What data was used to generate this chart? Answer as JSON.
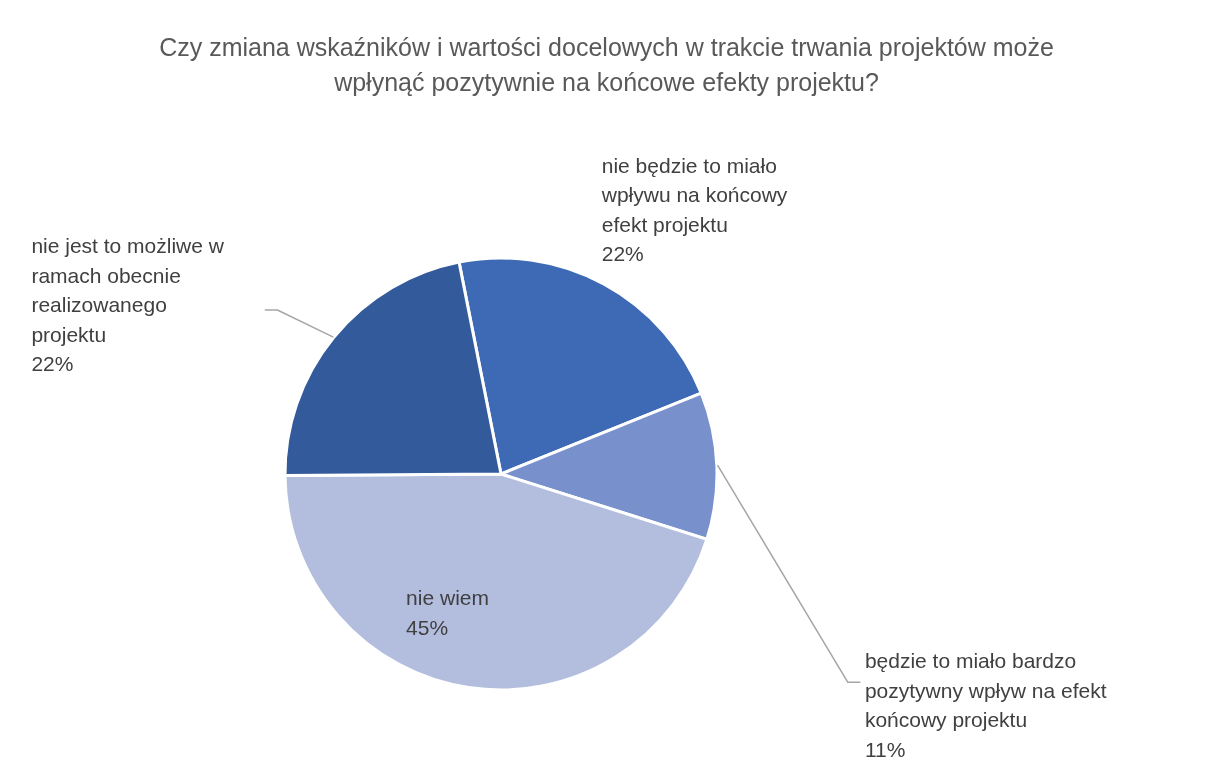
{
  "chart_data": {
    "type": "pie",
    "title": "Czy zmiana wskaźników i wartości docelowych w trakcie trwania projektów może wpłynąć pozytywnie na końcowe efekty projektu?",
    "categories": [
      "nie będzie to miało wpływu na końcowy efekt projektu",
      "będzie to miało bardzo pozytywny wpływ na efekt końcowy projektu",
      "nie wiem",
      "nie jest to możliwe w ramach obecnie realizowanego projektu"
    ],
    "values": [
      22,
      11,
      45,
      22
    ],
    "value_labels": [
      "22%",
      "11%",
      "45%",
      "22%"
    ],
    "colors": [
      "#3e6ab5",
      "#7891cd",
      "#b3bedf",
      "#335a9b"
    ]
  }
}
